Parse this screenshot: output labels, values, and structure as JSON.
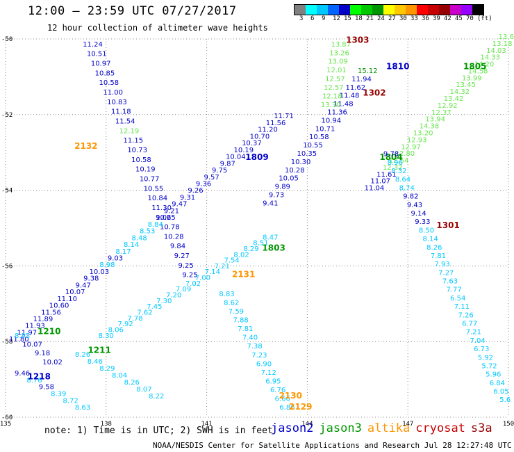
{
  "header": {
    "title": "12:00 – 23:59 UTC 07/27/2017",
    "subtitle": "12 hour collection of altimeter wave heights"
  },
  "legend": {
    "colors": [
      "#808080",
      "#00ffff",
      "#00c8ff",
      "#0064ff",
      "#0000c8",
      "#00ff00",
      "#00c800",
      "#009600",
      "#ffff00",
      "#ffc800",
      "#ff9600",
      "#ff0000",
      "#c80000",
      "#960000",
      "#c800c8",
      "#9600ff",
      "#000000"
    ],
    "labels": [
      "3",
      "6",
      "9",
      "12",
      "15",
      "18",
      "21",
      "24",
      "27",
      "30",
      "33",
      "36",
      "39",
      "42",
      "45",
      "70",
      "(ft)"
    ]
  },
  "footer": {
    "note": "note: 1) Time is in UTC; 2) SWH is in feet",
    "credit": "NOAA/NESDIS Center for Satellite Applications and Research   Jul 28 12:27:48 UTC 2017"
  },
  "satellites": [
    {
      "name": "jason2",
      "color": "#0000c8"
    },
    {
      "name": "jason3",
      "color": "#009600"
    },
    {
      "name": "altika",
      "color": "#ff9600"
    },
    {
      "name": "cryosat",
      "color": "#c80000"
    },
    {
      "name": "s3a",
      "color": "#960000"
    }
  ],
  "chart_data": {
    "type": "scatter",
    "x_ticks": [
      135,
      138,
      141,
      144,
      147,
      150
    ],
    "y_ticks": [
      -50,
      -52,
      -54,
      -56,
      -58,
      -60
    ],
    "xlim": [
      135,
      150
    ],
    "ylim": [
      -60,
      -50
    ],
    "grid": true,
    "series": [
      {
        "name": "jason2",
        "color": "#0000c8",
        "tracks": [
          {
            "label": "2132",
            "label_color": "#ff9600",
            "label_lon": 137.4,
            "label_lat": -52.9,
            "values": [
              "11.24",
              "10.51",
              "10.97",
              "10.85",
              "10.58",
              "11.00",
              "10.83",
              "11.18",
              "11.54",
              "12.19",
              "11.15",
              "10.73",
              "10.58",
              "10.19",
              "10.77",
              "10.55",
              "10.84",
              "11.30",
              "10.65",
              "10.78",
              "10.28",
              "9.84",
              "9.27",
              "9.25",
              "9.25"
            ],
            "lat_start": -50.2,
            "lat_end": -56.3,
            "lon_start": 137.6,
            "lon_end": 140.5
          },
          {
            "label": "1809",
            "label_color": "#0000c8",
            "label_lon": 142.5,
            "label_lat": -53.2,
            "values": [
              "11.71",
              "11.56",
              "11.20",
              "10.70",
              "10.37",
              "10.19",
              "10.04",
              "9.87",
              "9.75",
              "9.57",
              "9.36",
              "9.26",
              "9.31",
              "9.47",
              "9.21",
              "9.02",
              "8.84",
              "8.53",
              "8.48",
              "8.14",
              "8.17",
              "9.03",
              "8.98",
              "10.03",
              "9.38",
              "9.47",
              "10.07",
              "11.10",
              "10.60",
              "11.56",
              "11.89",
              "11.93",
              "11.97",
              "11.80"
            ],
            "lat_start": -52.1,
            "lat_end": -58.0,
            "lon_start": 143.3,
            "lon_end": 135.4
          },
          {
            "label": "1810",
            "label_color": "#0000c8",
            "label_lon": 146.7,
            "label_lat": -50.8,
            "values": [
              "15.12",
              "11.94",
              "11.62",
              "11.48",
              "11.48",
              "11.36",
              "10.94",
              "10.71",
              "10.58",
              "10.55",
              "10.35",
              "10.30",
              "10.28",
              "10.05",
              "9.89",
              "9.73",
              "9.41"
            ],
            "lat_start": -50.9,
            "lat_end": -54.4,
            "lon_start": 145.8,
            "lon_end": 142.9
          },
          {
            "label": "1218",
            "label_color": "#0000c8",
            "label_lon": 136.0,
            "label_lat": -59.0,
            "values": [
              "9.46",
              "8.76",
              "9.58",
              "8.39",
              "8.72",
              "8.63"
            ],
            "lat_start": -58.9,
            "lat_end": -59.8,
            "lon_start": 135.5,
            "lon_end": 137.3
          }
        ]
      },
      {
        "name": "jason3",
        "color": "#009600",
        "tracks": [
          {
            "label": "1805",
            "label_color": "#009600",
            "label_lon": 149.0,
            "label_lat": -50.8,
            "values": [
              "13.69",
              "13.18",
              "14.03",
              "14.33",
              "14.20",
              "14.58",
              "13.99",
              "13.45",
              "14.32",
              "13.42",
              "12.92",
              "12.37",
              "13.94",
              "14.38",
              "13.20",
              "12.93",
              "12.97",
              "12.80",
              "12.54",
              "12.32",
              "11.61",
              "11.07",
              "11.04"
            ],
            "lat_start": -50.0,
            "lat_end": -54.0,
            "lon_start": 150.0,
            "lon_end": 146.0
          },
          {
            "label": "1803",
            "label_color": "#009600",
            "label_lon": 143.0,
            "label_lat": -55.6,
            "values": [
              "8.47",
              "8.51",
              "8.29",
              "8.02",
              "7.54",
              "7.21",
              "7.14",
              "7.00",
              "7.02",
              "7.09",
              "7.20",
              "7.30",
              "7.45",
              "7.62",
              "7.78",
              "7.92",
              "8.06",
              "8.30"
            ],
            "lat_start": -55.3,
            "lat_end": -57.9,
            "lon_start": 142.9,
            "lon_end": 138.0
          },
          {
            "label": "1210",
            "label_color": "#009600",
            "label_lon": 136.3,
            "label_lat": -57.8,
            "values": [
              "8.93",
              "10.07",
              "9.18",
              "10.02"
            ],
            "lat_start": -57.9,
            "lat_end": -58.6,
            "lon_start": 135.5,
            "lon_end": 136.4
          },
          {
            "label": "1211",
            "label_color": "#009600",
            "label_lon": 137.8,
            "label_lat": -58.3,
            "values": [
              "8.26",
              "8.46",
              "8.29",
              "8.04",
              "8.26",
              "8.07",
              "8.22"
            ],
            "lat_start": -58.4,
            "lat_end": -59.5,
            "lon_start": 137.3,
            "lon_end": 139.5
          },
          {
            "label": "1804",
            "label_color": "#009600",
            "label_lon": 146.5,
            "label_lat": -53.2,
            "values": [],
            "lat_start": -53.2,
            "lat_end": -53.2,
            "lon_start": 146.5,
            "lon_end": 146.5
          }
        ]
      },
      {
        "name": "altika",
        "color": "#ff9600",
        "tracks": [
          {
            "label": "2131",
            "label_color": "#ff9600",
            "label_lon": 142.1,
            "label_lat": -56.3,
            "values": [
              "8.83",
              "8.62",
              "7.59",
              "7.88",
              "7.81",
              "7.40",
              "7.38",
              "7.23",
              "6.90",
              "7.12",
              "6.95",
              "6.76",
              "6.66",
              "6.86"
            ],
            "lat_start": -56.8,
            "lat_end": -59.8,
            "lon_start": 141.6,
            "lon_end": 143.4
          },
          {
            "label": "2130",
            "label_color": "#ff9600",
            "label_lon": 143.5,
            "label_lat": -59.5,
            "values": [],
            "lat_start": -59.5,
            "lat_end": -59.5,
            "lon_start": 143.5,
            "lon_end": 143.5
          },
          {
            "label": "2129",
            "label_color": "#ff9600",
            "label_lon": 143.8,
            "label_lat": -59.8,
            "values": [],
            "lat_start": -59.8,
            "lat_end": -59.8,
            "lon_start": 143.8,
            "lon_end": 143.8
          }
        ]
      },
      {
        "name": "cryosat",
        "color": "#c80000",
        "tracks": [
          {
            "label": "1302",
            "label_color": "#960000",
            "label_lon": 146.0,
            "label_lat": -51.5,
            "values": [
              "13.87",
              "13.26",
              "13.09",
              "12.01",
              "12.57",
              "12.57",
              "12.18",
              "13.30"
            ],
            "lat_start": -50.2,
            "lat_end": -51.8,
            "lon_start": 145.0,
            "lon_end": 144.7
          },
          {
            "label": "1303",
            "label_color": "#960000",
            "label_lon": 145.5,
            "label_lat": -50.1,
            "values": [],
            "lat_start": -50.1,
            "lat_end": -50.1,
            "lon_start": 145.5,
            "lon_end": 145.5
          }
        ]
      },
      {
        "name": "s3a",
        "color": "#960000",
        "tracks": [
          {
            "label": "1301",
            "label_color": "#960000",
            "label_lon": 148.2,
            "label_lat": -55.0,
            "values": [
              "9.78",
              "8.96",
              "8.32",
              "8.64",
              "8.74",
              "9.82",
              "9.43",
              "9.14",
              "9.33",
              "8.50",
              "8.14",
              "8.26",
              "7.81",
              "7.93",
              "7.27",
              "7.63",
              "7.77",
              "6.54",
              "7.11",
              "7.26",
              "6.77",
              "7.21",
              "7.04",
              "6.73",
              "5.92",
              "5.72",
              "5.96",
              "6.84",
              "6.05",
              "5.6"
            ],
            "lat_start": -53.1,
            "lat_end": -59.6,
            "lon_start": 146.5,
            "lon_end": 149.9
          }
        ]
      }
    ]
  }
}
